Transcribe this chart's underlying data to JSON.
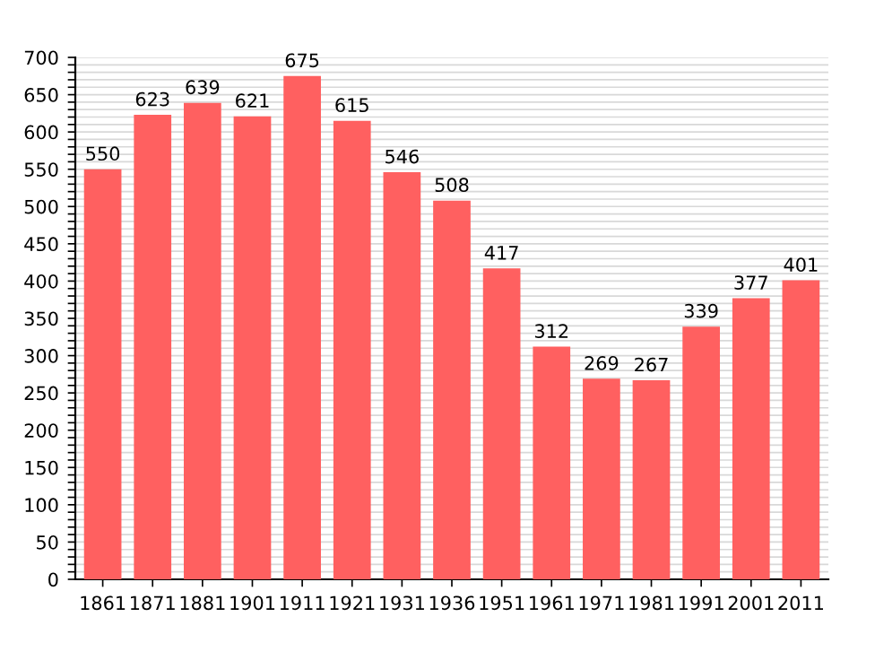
{
  "chart_data": {
    "type": "bar",
    "categories": [
      "1861",
      "1871",
      "1881",
      "1901",
      "1911",
      "1921",
      "1931",
      "1936",
      "1951",
      "1961",
      "1971",
      "1981",
      "1991",
      "2001",
      "2011"
    ],
    "values": [
      550,
      623,
      639,
      621,
      675,
      615,
      546,
      508,
      417,
      312,
      269,
      267,
      339,
      377,
      401
    ],
    "color": "#ff6060",
    "data_labels": true,
    "ylim": [
      0,
      700
    ],
    "yticks": [
      0,
      {
        "value": 10,
        "label": null
      },
      {
        "value": 20,
        "label": null
      },
      {
        "value": 30,
        "label": null
      },
      {
        "value": 40,
        "label": null
      },
      50,
      {
        "value": 60,
        "label": null
      },
      {
        "value": 70,
        "label": null
      },
      {
        "value": 80,
        "label": null
      },
      {
        "value": 90,
        "label": null
      },
      100,
      {
        "value": 110,
        "label": null
      },
      {
        "value": 120,
        "label": null
      },
      {
        "value": 130,
        "label": null
      },
      {
        "value": 140,
        "label": null
      },
      150,
      {
        "value": 160,
        "label": null
      },
      {
        "value": 170,
        "label": null
      },
      {
        "value": 180,
        "label": null
      },
      {
        "value": 190,
        "label": null
      },
      200,
      {
        "value": 210,
        "label": null
      },
      {
        "value": 220,
        "label": null
      },
      {
        "value": 230,
        "label": null
      },
      {
        "value": 240,
        "label": null
      },
      250,
      {
        "value": 260,
        "label": null
      },
      {
        "value": 270,
        "label": null
      },
      {
        "value": 280,
        "label": null
      },
      {
        "value": 290,
        "label": null
      },
      300,
      {
        "value": 310,
        "label": null
      },
      {
        "value": 320,
        "label": null
      },
      {
        "value": 330,
        "label": null
      },
      {
        "value": 340,
        "label": null
      },
      350,
      {
        "value": 360,
        "label": null
      },
      {
        "value": 370,
        "label": null
      },
      {
        "value": 380,
        "label": null
      },
      {
        "value": 390,
        "label": null
      },
      400,
      {
        "value": 410,
        "label": null
      },
      {
        "value": 420,
        "label": null
      },
      {
        "value": 430,
        "label": null
      },
      {
        "value": 440,
        "label": null
      },
      450,
      {
        "value": 460,
        "label": null
      },
      {
        "value": 470,
        "label": null
      },
      {
        "value": 480,
        "label": null
      },
      {
        "value": 490,
        "label": null
      },
      500,
      {
        "value": 510,
        "label": null
      },
      {
        "value": 520,
        "label": null
      },
      {
        "value": 530,
        "label": null
      },
      {
        "value": 540,
        "label": null
      },
      550,
      {
        "value": 560,
        "label": null
      },
      {
        "value": 570,
        "label": null
      },
      {
        "value": 580,
        "label": null
      },
      {
        "value": 590,
        "label": null
      },
      600,
      {
        "value": 610,
        "label": null
      },
      {
        "value": 620,
        "label": null
      },
      {
        "value": 630,
        "label": null
      },
      {
        "value": 640,
        "label": null
      },
      650,
      {
        "value": 660,
        "label": null
      },
      {
        "value": 670,
        "label": null
      },
      {
        "value": 680,
        "label": null
      },
      {
        "value": 690,
        "label": null
      },
      700
    ],
    "grid": "y"
  }
}
